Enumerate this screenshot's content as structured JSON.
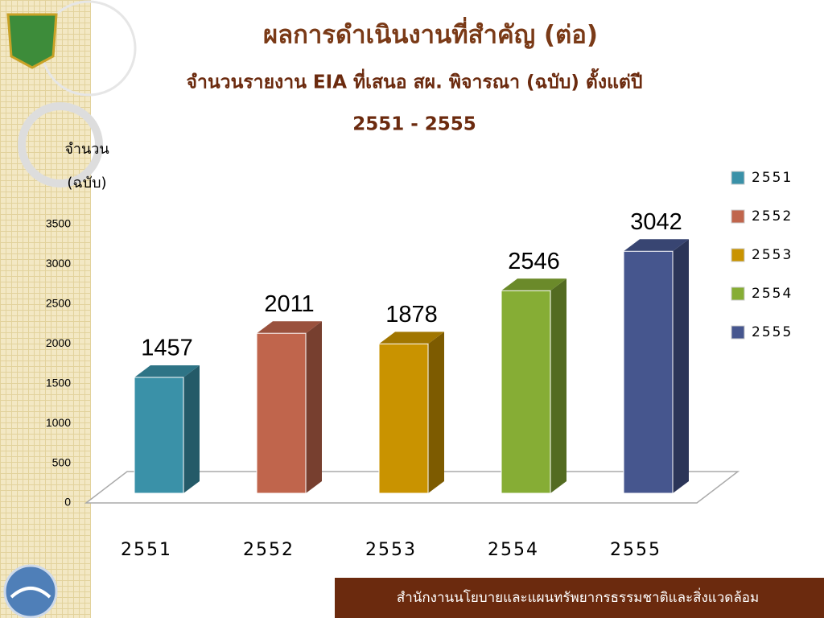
{
  "chart_data": {
    "type": "bar3d",
    "title": "ผลการดำเนินงานที่สำคัญ (ต่อ)",
    "subtitle": [
      "จำนวนรายงาน EIA ที่เสนอ สผ. พิจารณา (ฉบับ) ตั้งแต่ปี",
      "2551 - 2555"
    ],
    "y_label": [
      "จำนวน",
      "(ฉบับ)"
    ],
    "categories": [
      "2551",
      "2552",
      "2553",
      "2554",
      "2555"
    ],
    "values": [
      1457,
      2011,
      1878,
      2546,
      3042
    ],
    "colors": [
      "#3a91a8",
      "#c0654c",
      "#c99300",
      "#86ad35",
      "#46568e"
    ],
    "ylim": [
      0,
      3500
    ],
    "yticks": [
      0,
      500,
      1000,
      1500,
      2000,
      2500,
      3000,
      3500
    ],
    "legend": "right"
  },
  "footer": "สำนักงานนโยบายและแผนทรัพยากรธรรมชาติและสิ่งแวดล้อม"
}
